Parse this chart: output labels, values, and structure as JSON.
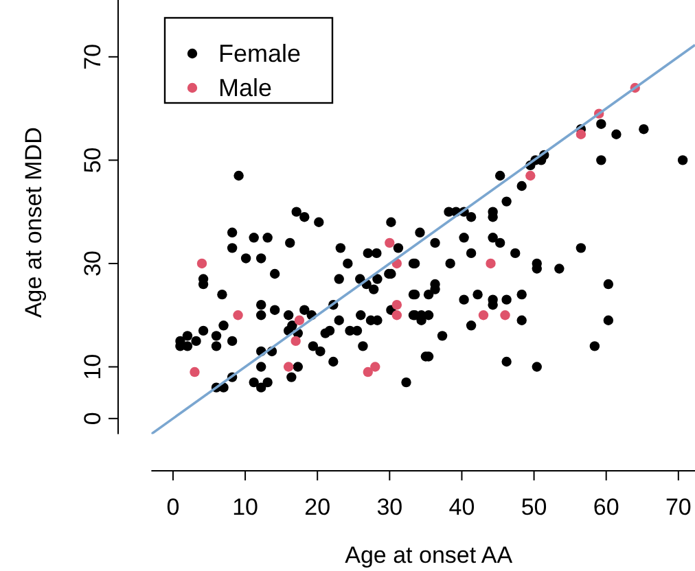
{
  "chart_data": {
    "type": "scatter",
    "xlabel": "Age at onset AA",
    "ylabel": "Age at onset MDD",
    "xlim": [
      -3,
      72.3
    ],
    "ylim": [
      -3,
      81
    ],
    "xticks": [
      0,
      10,
      20,
      30,
      40,
      50,
      60,
      70
    ],
    "yticks": [
      0,
      10,
      30,
      50,
      70
    ],
    "legend": "top left",
    "marker": "circle",
    "grid": false,
    "series": [
      {
        "name": "Female",
        "color": "#000000",
        "x": [
          56.5,
          59.3,
          61.4,
          65.2,
          9.1,
          17.1,
          18.2,
          20.2,
          8.2,
          8.2,
          11.2,
          13.1,
          10.1,
          12.2,
          16.2,
          14.1,
          23.2,
          24.2,
          27,
          28.2,
          31.2,
          34.2,
          33.3,
          30.2,
          23,
          30.2,
          4.2,
          4.2,
          59.3,
          70.6,
          51.4,
          51,
          50.2,
          49.5,
          45.3,
          48.3,
          46.2,
          38.2,
          39.2,
          40.3,
          41.3,
          44.3,
          44.3,
          36.3,
          40.3,
          44.3,
          45.3,
          41.3,
          47.4,
          56.5,
          33.5,
          38.4,
          50.4,
          50.4,
          53.5,
          60.3,
          36.3,
          33.5,
          35.4,
          36.3,
          40.3,
          42.2,
          44.3,
          44.3,
          46.2,
          48.3,
          48.3,
          60.3,
          33.5,
          34.4,
          35.4,
          41.3,
          37.3,
          35.4,
          46.2,
          50.4,
          58.4,
          6.8,
          12.2,
          12.2,
          14.1,
          16,
          2,
          3.2,
          4.2,
          2,
          6,
          6,
          7,
          8.2,
          6,
          8.2,
          12.2,
          12.2,
          12.2,
          13.1,
          13.7,
          16,
          16.5,
          17.3,
          17.3,
          16.4,
          18.2,
          19.2,
          19.4,
          20.4,
          22.2,
          21.1,
          21.7,
          22.2,
          23,
          25.9,
          26.8,
          27.8,
          28.3,
          24.5,
          25.5,
          26.3,
          26,
          27.4,
          28.3,
          29.9,
          33.3,
          33.3,
          34.4,
          32.3,
          35,
          30.2,
          11.2,
          1,
          1,
          7
        ],
        "values": [
          56,
          57,
          55,
          56,
          47,
          40,
          39,
          38,
          36,
          33,
          35,
          35,
          31,
          31,
          34,
          28,
          33,
          30,
          32,
          32,
          33,
          36,
          30,
          38,
          27,
          28,
          27,
          26,
          50,
          50,
          51,
          50,
          50,
          49,
          47,
          45,
          42,
          40,
          40,
          40,
          39,
          40,
          39,
          34,
          35,
          35,
          34,
          32,
          32,
          33,
          30,
          30,
          30,
          29,
          29,
          26,
          26,
          24,
          24,
          25,
          23,
          24,
          23,
          22,
          23,
          24,
          19,
          19,
          20,
          19,
          20,
          18,
          16,
          12,
          11,
          10,
          14,
          24,
          22,
          20,
          21,
          20,
          16,
          15,
          17,
          14,
          16,
          14,
          18,
          15,
          6,
          8,
          13,
          10,
          6,
          7,
          13,
          17,
          18,
          16.5,
          10,
          8,
          21,
          20,
          14,
          13,
          11,
          16.5,
          17,
          22,
          19,
          27,
          26,
          25,
          27,
          17,
          17,
          14,
          20,
          19,
          19,
          28,
          24,
          20,
          20,
          7,
          12,
          21,
          7,
          15,
          14,
          6
        ]
      },
      {
        "name": "Male",
        "color": "#df536b",
        "x": [
          4,
          3,
          9,
          16,
          17,
          17.5,
          27,
          28,
          30,
          31,
          31,
          31,
          43,
          46,
          44,
          49.5,
          56.5,
          59,
          64
        ],
        "values": [
          30,
          9,
          20,
          10,
          15,
          19,
          9,
          10,
          34,
          30,
          22,
          20,
          20,
          20,
          30,
          47,
          55,
          59,
          64
        ]
      },
      {
        "type": "line",
        "color": "#7aa6d0",
        "marker": "none",
        "x": [
          -3,
          72.3
        ],
        "values": [
          -3,
          72.3
        ]
      }
    ]
  }
}
